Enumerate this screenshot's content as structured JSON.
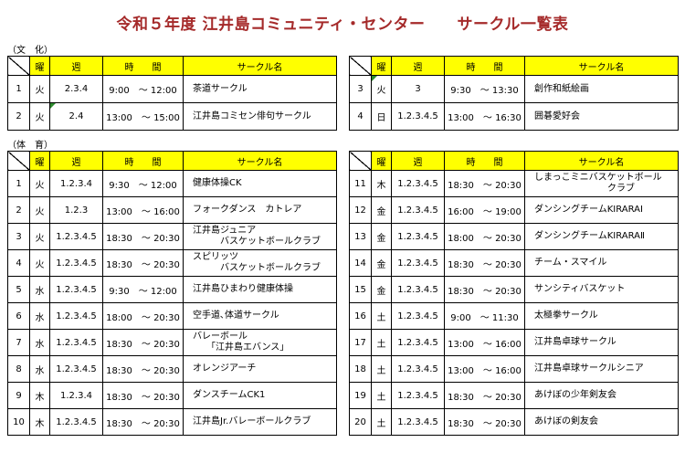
{
  "title": "令和５年度 江井島コミュニティ・センター　　サークル一覧表",
  "headers": {
    "day": "曜",
    "week": "週",
    "time": "時　　間",
    "name": "サークル名"
  },
  "culture": {
    "label": "（文　化）",
    "left": [
      {
        "no": "1",
        "day": "火",
        "week": "2.3.4",
        "time": "9:00　～ 12:00",
        "name": "茶道サークル"
      },
      {
        "no": "2",
        "day": "火",
        "week": "2.4",
        "time": "13:00　～ 15:00",
        "name": "江井島コミセン俳句サークル"
      }
    ],
    "right": [
      {
        "no": "3",
        "day": "火",
        "week": "3",
        "time": "9:30　～ 13:30",
        "name": "創作和紙絵画"
      },
      {
        "no": "4",
        "day": "日",
        "week": "1.2.3.4.5",
        "time": "13:00　～ 16:30",
        "name": "囲碁愛好会"
      }
    ]
  },
  "sports": {
    "label": "（体　育）",
    "left": [
      {
        "no": "1",
        "day": "火",
        "week": "1.2.3.4",
        "time": "9:30　～ 12:00",
        "name": "健康体操CK"
      },
      {
        "no": "2",
        "day": "火",
        "week": "1.2.3",
        "time": "13:00　～ 16:00",
        "name": "フォークダンス　カトレア"
      },
      {
        "no": "3",
        "day": "火",
        "week": "1.2.3.4.5",
        "time": "18:30　～ 20:30",
        "name": "江井島ジュニア\n　　　バスケットボールクラブ"
      },
      {
        "no": "4",
        "day": "火",
        "week": "1.2.3.4.5",
        "time": "18:30　～ 20:30",
        "name": "スピリッツ\n　　　バスケットボールクラブ"
      },
      {
        "no": "5",
        "day": "水",
        "week": "1.2.3.4.5",
        "time": "9:30　～ 12:00",
        "name": "江井島ひまわり健康体操"
      },
      {
        "no": "6",
        "day": "水",
        "week": "1.2.3.4.5",
        "time": "18:00　～ 20:30",
        "name": "空手道､体道サークル"
      },
      {
        "no": "7",
        "day": "水",
        "week": "1.2.3.4.5",
        "time": "18:30　～ 20:30",
        "name": "バレーボール\n　　「江井島エバンス」"
      },
      {
        "no": "8",
        "day": "水",
        "week": "1.2.3.4.5",
        "time": "18:30　～ 20:30",
        "name": "オレンジアーチ"
      },
      {
        "no": "9",
        "day": "木",
        "week": "1.2.3.4",
        "time": "18:30　～ 20:30",
        "name": "ダンスチームCK1"
      },
      {
        "no": "10",
        "day": "木",
        "week": "1.2.3.4.5",
        "time": "18:30　～ 20:30",
        "name": "江井島Jr.バレーボールクラブ"
      }
    ],
    "right": [
      {
        "no": "11",
        "day": "木",
        "week": "1.2.3.4.5",
        "time": "18:30　～ 20:30",
        "name": "しまっこミニバスケットボール\n　　　　　　　　クラブ"
      },
      {
        "no": "12",
        "day": "金",
        "week": "1.2.3.4.5",
        "time": "16:00　～ 19:00",
        "name": "ダンシングチームKIRARAⅠ"
      },
      {
        "no": "13",
        "day": "金",
        "week": "1.2.3.4.5",
        "time": "18:00　～ 20:30",
        "name": "ダンシングチームKIRARAⅡ"
      },
      {
        "no": "14",
        "day": "金",
        "week": "1.2.3.4.5",
        "time": "18:30　～ 20:30",
        "name": "チーム・スマイル"
      },
      {
        "no": "15",
        "day": "金",
        "week": "1.2.3.4.5",
        "time": "18:30　～ 20:30",
        "name": "サンシティバスケット"
      },
      {
        "no": "16",
        "day": "土",
        "week": "1.2.3.4.5",
        "time": "9:00　～ 11:30",
        "name": "太極拳サークル"
      },
      {
        "no": "17",
        "day": "土",
        "week": "1.2.3.4.5",
        "time": "13:00　～ 16:00",
        "name": "江井島卓球サークル"
      },
      {
        "no": "18",
        "day": "土",
        "week": "1.2.3.4.5",
        "time": "13:00　～ 16:00",
        "name": "江井島卓球サークルシニア"
      },
      {
        "no": "19",
        "day": "土",
        "week": "1.2.3.4.5",
        "time": "18:30　～ 20:30",
        "name": "あけぼの少年剣友会"
      },
      {
        "no": "20",
        "day": "土",
        "week": "1.2.3.4.5",
        "time": "18:30　～ 20:30",
        "name": "あけぼの剣友会"
      }
    ]
  }
}
